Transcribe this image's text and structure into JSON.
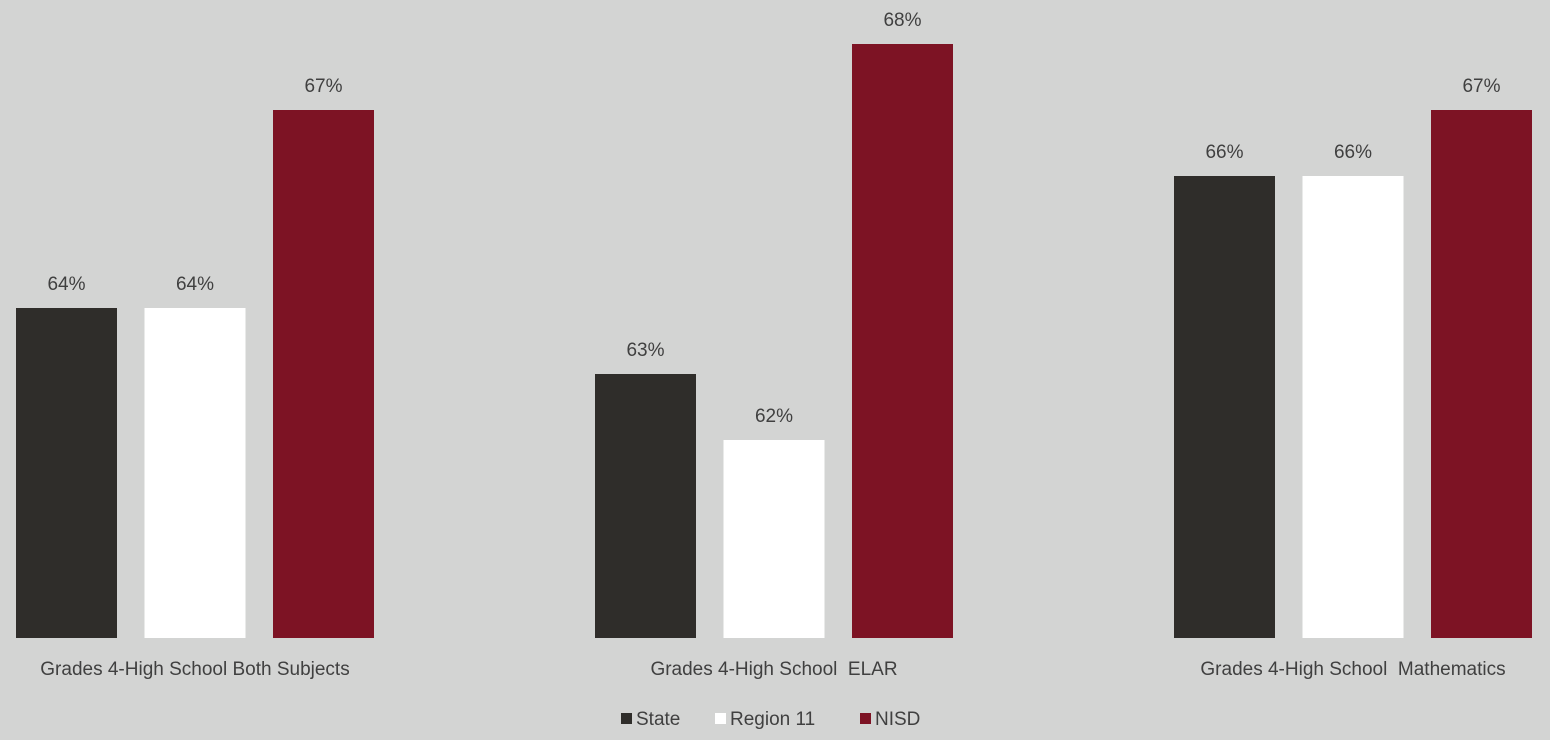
{
  "chart_data": {
    "type": "bar",
    "title": "",
    "xlabel": "",
    "ylabel": "",
    "categories": [
      "Grades 4-High School Both Subjects",
      "Grades 4-High School  ELAR",
      "Grades 4-High School  Mathematics"
    ],
    "series": [
      {
        "name": "State",
        "values": [
          64,
          63,
          66
        ],
        "labels": [
          "64%",
          "63%",
          "66%"
        ],
        "color": "#2f2d2a"
      },
      {
        "name": "Region 11",
        "values": [
          64,
          62,
          66
        ],
        "labels": [
          "64%",
          "62%",
          "66%"
        ],
        "color": "#ffffff"
      },
      {
        "name": "NISD",
        "values": [
          67,
          68,
          67
        ],
        "labels": [
          "67%",
          "68%",
          "67%"
        ],
        "color": "#7d1324"
      }
    ],
    "value_unit": "%",
    "axis_visible": false,
    "grid": false,
    "legend_position": "bottom-center",
    "colors": {
      "background": "#d3d4d3",
      "text": "#404040"
    }
  }
}
